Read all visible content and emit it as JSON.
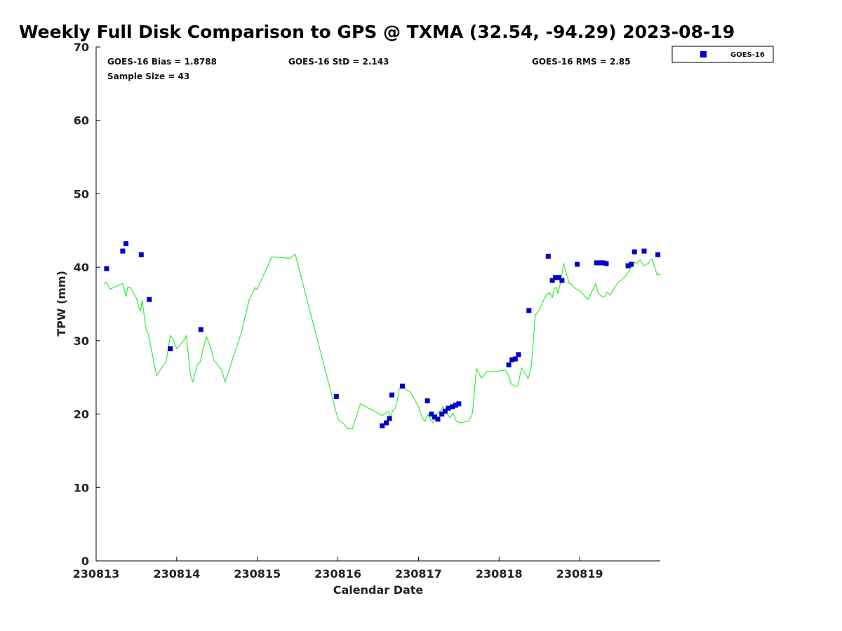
{
  "chart_data": {
    "type": "line",
    "title": "Weekly Full Disk Comparison to GPS @ TXMA (32.54, -94.29) 2023-08-19",
    "xlabel": "Calendar Date",
    "ylabel": "TPW (mm)",
    "xlim": [
      0,
      7.0
    ],
    "ylim": [
      0,
      70
    ],
    "x_ticks": [
      {
        "value": 0,
        "label": "230813"
      },
      {
        "value": 1,
        "label": "230814"
      },
      {
        "value": 2,
        "label": "230815"
      },
      {
        "value": 3,
        "label": "230816"
      },
      {
        "value": 4,
        "label": "230817"
      },
      {
        "value": 5,
        "label": "230818"
      },
      {
        "value": 6,
        "label": "230819"
      }
    ],
    "y_ticks": [
      0,
      10,
      20,
      30,
      40,
      50,
      60,
      70
    ],
    "grid": false,
    "legend": {
      "placement": "top-right",
      "entries": [
        {
          "label": "GOES-16",
          "color": "#0000cc",
          "marker": "square"
        }
      ]
    },
    "stats": {
      "bias": "GOES-16 Bias = 1.8788",
      "std": "GOES-16 StD = 2.143",
      "rms": "GOES-16 RMS = 2.85",
      "sample_size": "Sample Size = 43"
    },
    "series": [
      {
        "name": "",
        "kind": "line",
        "color": "#33ee33",
        "x": [
          0.1,
          0.13,
          0.17,
          0.33,
          0.37,
          0.39,
          0.42,
          0.5,
          0.53,
          0.55,
          0.57,
          0.62,
          0.65,
          0.75,
          0.87,
          0.92,
          0.95,
          1.0,
          1.1,
          1.12,
          1.17,
          1.2,
          1.26,
          1.29,
          1.33,
          1.37,
          1.43,
          1.46,
          1.5,
          1.56,
          1.6,
          1.64,
          1.7,
          1.8,
          1.9,
          1.94,
          1.97,
          2.0,
          2.08,
          2.18,
          2.31,
          2.4,
          2.47,
          3.0,
          3.05,
          3.1,
          3.13,
          3.18,
          3.28,
          3.55,
          3.63,
          3.65,
          3.68,
          3.71,
          3.74,
          3.76,
          3.81,
          3.9,
          3.95,
          4.0,
          4.05,
          4.08,
          4.12,
          4.15,
          4.18,
          4.2,
          4.25,
          4.28,
          4.3,
          4.35,
          4.39,
          4.43,
          4.47,
          4.52,
          4.6,
          4.63,
          4.67,
          4.72,
          4.78,
          4.85,
          4.9,
          4.95,
          5.08,
          5.12,
          5.15,
          5.2,
          5.23,
          5.28,
          5.33,
          5.36,
          5.4,
          5.45,
          5.5,
          5.55,
          5.59,
          5.63,
          5.66,
          5.68,
          5.71,
          5.73,
          5.76,
          5.8,
          5.87,
          5.89,
          5.92,
          6.02,
          6.1,
          6.13,
          6.2,
          6.23,
          6.28,
          6.31,
          6.34,
          6.38,
          6.43,
          6.47,
          6.52,
          6.57,
          6.64,
          6.67,
          6.7,
          6.75,
          6.79,
          6.85,
          6.88,
          6.9,
          6.93,
          6.96,
          7.0
        ],
        "y": [
          37.7,
          38.0,
          37.0,
          37.8,
          36.0,
          37.2,
          37.3,
          35.8,
          34.5,
          34.0,
          35.5,
          31.5,
          30.8,
          25.2,
          27.2,
          30.7,
          30.3,
          28.9,
          30.2,
          30.7,
          25.3,
          24.4,
          26.8,
          27.1,
          29.0,
          30.5,
          28.8,
          27.3,
          26.8,
          25.9,
          24.4,
          25.7,
          27.7,
          31.0,
          35.6,
          36.5,
          37.2,
          37.0,
          39.0,
          41.4,
          41.3,
          41.2,
          41.8,
          19.3,
          18.9,
          18.3,
          18.0,
          18.0,
          21.4,
          19.8,
          20.4,
          19.5,
          20.5,
          20.7,
          22.0,
          23.5,
          23.6,
          23.0,
          22.0,
          21.0,
          19.4,
          19.0,
          20.0,
          19.2,
          18.8,
          19.5,
          20.3,
          20.5,
          21.0,
          20.2,
          19.5,
          20.1,
          19.0,
          18.8,
          19.0,
          19.1,
          20.2,
          26.2,
          24.9,
          25.8,
          25.8,
          25.8,
          26.0,
          25.2,
          24.1,
          23.8,
          23.8,
          26.3,
          25.4,
          24.8,
          26.5,
          33.5,
          34.2,
          35.5,
          36.3,
          36.5,
          35.9,
          37.0,
          37.3,
          36.4,
          37.8,
          40.5,
          37.8,
          37.8,
          37.3,
          36.6,
          35.6,
          36.2,
          37.8,
          36.4,
          36.0,
          36.0,
          36.6,
          36.2,
          37.2,
          37.8,
          38.3,
          38.8,
          40.0,
          40.7,
          40.5,
          41.0,
          40.2,
          40.5,
          41.0,
          41.1,
          40.0,
          39.0,
          39.0
        ]
      },
      {
        "name": "GOES-16",
        "kind": "scatter",
        "color": "#0000cc",
        "x": [
          0.13,
          0.33,
          0.37,
          0.56,
          0.66,
          0.92,
          1.3,
          2.98,
          3.55,
          3.6,
          3.64,
          3.67,
          3.8,
          4.11,
          4.16,
          4.2,
          4.24,
          4.29,
          4.33,
          4.37,
          4.42,
          4.46,
          4.5,
          5.12,
          5.16,
          5.2,
          5.24,
          5.37,
          5.61,
          5.66,
          5.7,
          5.74,
          5.78,
          5.97,
          6.21,
          6.25,
          6.29,
          6.33,
          6.6,
          6.64,
          6.68,
          6.8,
          6.97
        ],
        "y": [
          39.8,
          42.2,
          43.2,
          41.7,
          35.6,
          28.9,
          31.5,
          22.4,
          18.4,
          18.8,
          19.4,
          22.6,
          23.8,
          21.8,
          20.0,
          19.6,
          19.3,
          20.0,
          20.4,
          20.8,
          21.0,
          21.2,
          21.4,
          26.7,
          27.4,
          27.5,
          28.1,
          34.1,
          41.5,
          38.2,
          38.6,
          38.6,
          38.2,
          40.4,
          40.6,
          40.6,
          40.6,
          40.5,
          40.2,
          40.4,
          42.1,
          42.2,
          41.7
        ]
      }
    ]
  }
}
